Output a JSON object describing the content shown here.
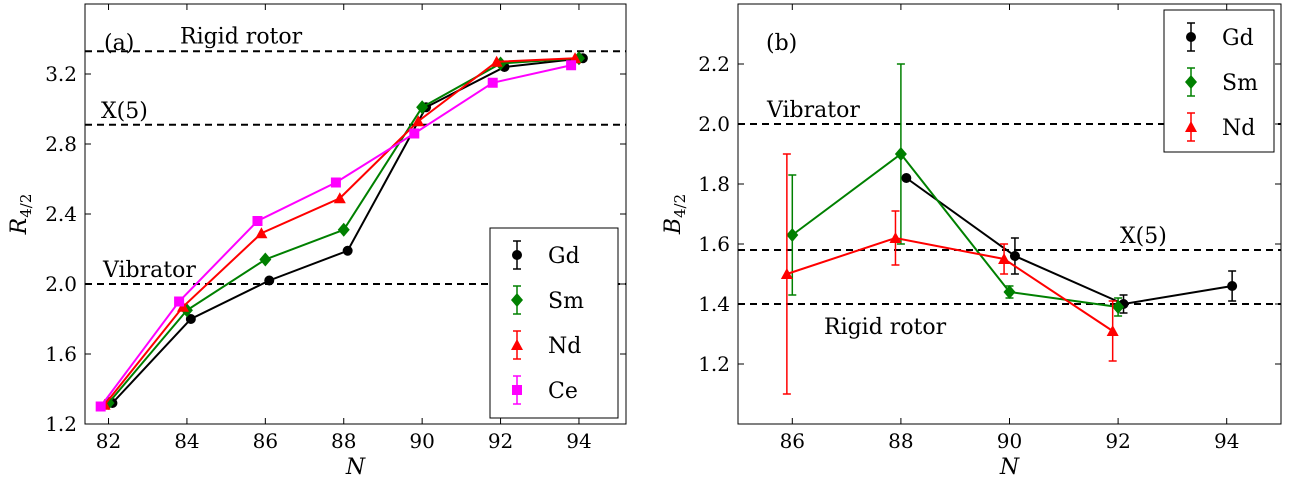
{
  "chart_data": [
    {
      "type": "line",
      "panel_label": "(a)",
      "xlabel": "N",
      "ylabel": "R",
      "ylabel_sub": "4/2",
      "xlim": [
        81.4,
        95.2
      ],
      "ylim": [
        1.2,
        3.6
      ],
      "xticks": [
        82,
        84,
        86,
        88,
        90,
        92,
        94
      ],
      "yticks": [
        1.2,
        1.6,
        2.0,
        2.4,
        2.8,
        3.2
      ],
      "ytick_labels": [
        "1.2",
        "1.6",
        "2.0",
        "2.4",
        "2.8",
        "3.2"
      ],
      "reference_lines": [
        {
          "label": "Rigid rotor",
          "y": 3.33
        },
        {
          "label": "X(5)",
          "y": 2.91
        },
        {
          "label": "Vibrator",
          "y": 2.0
        }
      ],
      "legend_position": "bottom-right",
      "series": [
        {
          "name": "Gd",
          "color": "#000000",
          "marker": "circle",
          "x": [
            82.1,
            84.1,
            86.1,
            88.1,
            90.1,
            92.1,
            94.1
          ],
          "y": [
            1.32,
            1.8,
            2.02,
            2.19,
            3.01,
            3.24,
            3.29
          ]
        },
        {
          "name": "Sm",
          "color": "#008000",
          "marker": "diamond",
          "x": [
            82.0,
            84.0,
            86.0,
            88.0,
            90.0,
            92.0,
            94.0
          ],
          "y": [
            1.32,
            1.85,
            2.14,
            2.31,
            3.01,
            3.26,
            3.29
          ]
        },
        {
          "name": "Nd",
          "color": "#ff0000",
          "marker": "triangle",
          "x": [
            81.9,
            83.9,
            85.9,
            87.9,
            89.9,
            91.9,
            93.9
          ],
          "y": [
            1.31,
            1.87,
            2.29,
            2.49,
            2.93,
            3.27,
            3.29
          ]
        },
        {
          "name": "Ce",
          "color": "#ff00ff",
          "marker": "square",
          "x": [
            81.8,
            83.8,
            85.8,
            87.8,
            89.8,
            91.8,
            93.8
          ],
          "y": [
            1.3,
            1.9,
            2.36,
            2.58,
            2.86,
            3.15,
            3.25
          ]
        }
      ]
    },
    {
      "type": "line",
      "panel_label": "(b)",
      "xlabel": "N",
      "ylabel": "B",
      "ylabel_sub": "4/2",
      "xlim": [
        85.0,
        95.0
      ],
      "ylim": [
        1.0,
        2.4
      ],
      "xticks": [
        86,
        88,
        90,
        92,
        94
      ],
      "yticks": [
        1.2,
        1.4,
        1.6,
        1.8,
        2.0,
        2.2
      ],
      "ytick_labels": [
        "1.2",
        "1.4",
        "1.6",
        "1.8",
        "2.0",
        "2.2"
      ],
      "reference_lines": [
        {
          "label": "Vibrator",
          "y": 2.0
        },
        {
          "label": "X(5)",
          "y": 1.58
        },
        {
          "label": "Rigid rotor",
          "y": 1.4
        }
      ],
      "legend_position": "top-right",
      "series": [
        {
          "name": "Gd",
          "color": "#000000",
          "marker": "circle",
          "x": [
            88.1,
            90.1,
            92.1,
            94.1
          ],
          "y": [
            1.82,
            1.56,
            1.4,
            1.46
          ],
          "err": [
            0.0,
            0.06,
            0.03,
            0.05
          ]
        },
        {
          "name": "Sm",
          "color": "#008000",
          "marker": "diamond",
          "x": [
            86.0,
            88.0,
            90.0,
            92.0
          ],
          "y": [
            1.63,
            1.9,
            1.44,
            1.39
          ],
          "err": [
            0.2,
            0.3,
            0.02,
            0.03
          ]
        },
        {
          "name": "Nd",
          "color": "#ff0000",
          "marker": "triangle",
          "x": [
            85.9,
            87.9,
            89.9,
            91.9
          ],
          "y": [
            1.5,
            1.62,
            1.55,
            1.31
          ],
          "err": [
            0.4,
            0.09,
            0.05,
            0.1
          ]
        }
      ]
    }
  ]
}
